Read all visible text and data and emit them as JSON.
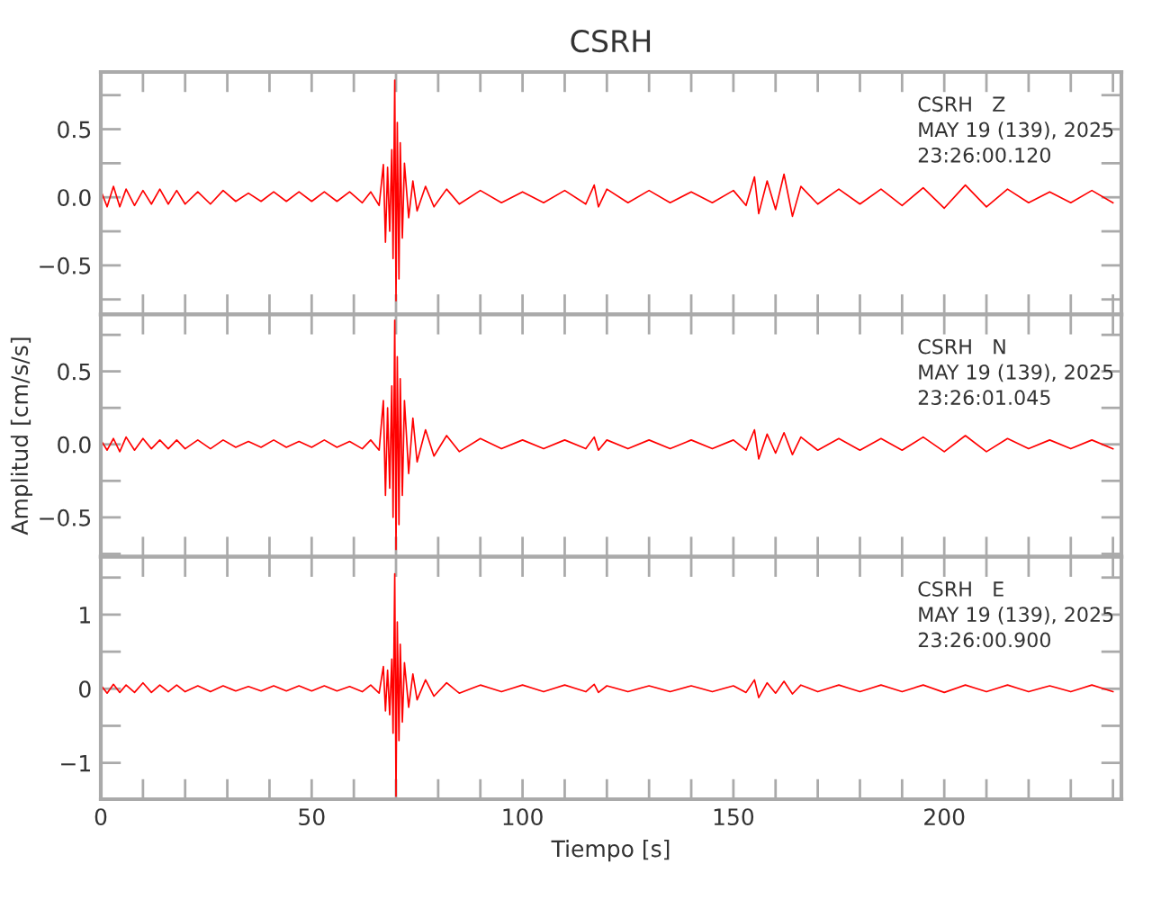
{
  "chart_data": [
    {
      "type": "line",
      "title": "CSRH",
      "tick_labels": "y",
      "annotations": [
        "CSRH   Z",
        "MAY 19 (139), 2025",
        "23:26:00.120"
      ],
      "xlim": [
        0,
        242
      ],
      "xticks": [
        {
          "value": 0,
          "label": null
        },
        {
          "value": 10,
          "label": null
        },
        {
          "value": 20,
          "label": null
        },
        {
          "value": 30,
          "label": null
        },
        {
          "value": 40,
          "label": null
        },
        {
          "value": 50,
          "label": null
        },
        {
          "value": 60,
          "label": null
        },
        {
          "value": 70,
          "label": null
        },
        {
          "value": 80,
          "label": null
        },
        {
          "value": 90,
          "label": null
        },
        {
          "value": 100,
          "label": null
        },
        {
          "value": 110,
          "label": null
        },
        {
          "value": 120,
          "label": null
        },
        {
          "value": 130,
          "label": null
        },
        {
          "value": 140,
          "label": null
        },
        {
          "value": 150,
          "label": null
        },
        {
          "value": 160,
          "label": null
        },
        {
          "value": 170,
          "label": null
        },
        {
          "value": 180,
          "label": null
        },
        {
          "value": 190,
          "label": null
        },
        {
          "value": 200,
          "label": null
        },
        {
          "value": 210,
          "label": null
        },
        {
          "value": 220,
          "label": null
        },
        {
          "value": 230,
          "label": null
        },
        {
          "value": 240,
          "label": null
        }
      ],
      "ylim": [
        -0.86,
        0.92
      ],
      "yticks": [
        {
          "value": -0.75,
          "label": null
        },
        {
          "value": -0.5,
          "label": "−0.5"
        },
        {
          "value": -0.25,
          "label": null
        },
        {
          "value": 0,
          "label": "0.0"
        },
        {
          "value": 0.25,
          "label": null
        },
        {
          "value": 0.5,
          "label": "0.5"
        },
        {
          "value": 0.75,
          "label": null
        }
      ],
      "x": [
        0,
        1.5,
        3,
        4.5,
        6,
        8,
        10,
        12,
        14,
        16,
        18,
        20,
        23,
        26,
        29,
        32,
        35,
        38,
        41,
        44,
        47,
        50,
        53,
        56,
        59,
        62,
        64,
        66,
        67,
        67.5,
        68,
        68.5,
        69,
        69.3,
        69.7,
        70,
        70.3,
        70.7,
        71,
        71.5,
        72,
        73,
        74,
        75,
        77,
        79,
        82,
        85,
        90,
        95,
        100,
        105,
        110,
        115,
        117,
        118,
        120,
        125,
        130,
        135,
        140,
        145,
        150,
        153,
        155,
        156,
        158,
        160,
        162,
        164,
        166,
        170,
        175,
        180,
        185,
        190,
        195,
        200,
        205,
        210,
        215,
        220,
        225,
        230,
        235,
        240
      ],
      "series": [
        {
          "color": "#ff0000",
          "values": [
            0.05,
            -0.07,
            0.08,
            -0.07,
            0.06,
            -0.06,
            0.05,
            -0.05,
            0.06,
            -0.05,
            0.05,
            -0.05,
            0.04,
            -0.05,
            0.05,
            -0.03,
            0.03,
            -0.03,
            0.04,
            -0.03,
            0.04,
            -0.03,
            0.04,
            -0.03,
            0.04,
            -0.04,
            0.04,
            -0.06,
            0.24,
            -0.33,
            0.22,
            -0.25,
            0.35,
            -0.45,
            0.86,
            -0.76,
            0.55,
            -0.6,
            0.4,
            -0.3,
            0.25,
            -0.15,
            0.12,
            -0.1,
            0.08,
            -0.07,
            0.06,
            -0.05,
            0.05,
            -0.04,
            0.04,
            -0.04,
            0.05,
            -0.05,
            0.09,
            -0.07,
            0.06,
            -0.04,
            0.05,
            -0.04,
            0.04,
            -0.04,
            0.05,
            -0.06,
            0.15,
            -0.12,
            0.12,
            -0.09,
            0.17,
            -0.14,
            0.08,
            -0.05,
            0.06,
            -0.05,
            0.06,
            -0.06,
            0.07,
            -0.08,
            0.09,
            -0.07,
            0.06,
            -0.04,
            0.04,
            -0.04,
            0.05,
            -0.04
          ]
        }
      ]
    },
    {
      "type": "line",
      "ylabel": "Amplitud [cm/s/s]",
      "tick_labels": "y",
      "annotations": [
        "CSRH   N",
        "MAY 19 (139), 2025",
        "23:26:01.045"
      ],
      "xlim": [
        0,
        242
      ],
      "xticks": [
        {
          "value": 0,
          "label": null
        },
        {
          "value": 10,
          "label": null
        },
        {
          "value": 20,
          "label": null
        },
        {
          "value": 30,
          "label": null
        },
        {
          "value": 40,
          "label": null
        },
        {
          "value": 50,
          "label": null
        },
        {
          "value": 60,
          "label": null
        },
        {
          "value": 70,
          "label": null
        },
        {
          "value": 80,
          "label": null
        },
        {
          "value": 90,
          "label": null
        },
        {
          "value": 100,
          "label": null
        },
        {
          "value": 110,
          "label": null
        },
        {
          "value": 120,
          "label": null
        },
        {
          "value": 130,
          "label": null
        },
        {
          "value": 140,
          "label": null
        },
        {
          "value": 150,
          "label": null
        },
        {
          "value": 160,
          "label": null
        },
        {
          "value": 170,
          "label": null
        },
        {
          "value": 180,
          "label": null
        },
        {
          "value": 190,
          "label": null
        },
        {
          "value": 200,
          "label": null
        },
        {
          "value": 210,
          "label": null
        },
        {
          "value": 220,
          "label": null
        },
        {
          "value": 230,
          "label": null
        },
        {
          "value": 240,
          "label": null
        }
      ],
      "ylim": [
        -0.77,
        0.89
      ],
      "yticks": [
        {
          "value": -0.75,
          "label": null
        },
        {
          "value": -0.5,
          "label": "−0.5"
        },
        {
          "value": -0.25,
          "label": null
        },
        {
          "value": 0,
          "label": "0.0"
        },
        {
          "value": 0.25,
          "label": null
        },
        {
          "value": 0.5,
          "label": "0.5"
        },
        {
          "value": 0.75,
          "label": null
        }
      ],
      "x": [
        0,
        1.5,
        3,
        4.5,
        6,
        8,
        10,
        12,
        14,
        16,
        18,
        20,
        23,
        26,
        29,
        32,
        35,
        38,
        41,
        44,
        47,
        50,
        53,
        56,
        59,
        62,
        64,
        66,
        67,
        67.5,
        68,
        68.5,
        69,
        69.3,
        69.7,
        70,
        70.3,
        70.7,
        71,
        71.5,
        72,
        73,
        74,
        75,
        77,
        79,
        82,
        85,
        90,
        95,
        100,
        105,
        110,
        115,
        117,
        118,
        120,
        125,
        130,
        135,
        140,
        145,
        150,
        153,
        155,
        156,
        158,
        160,
        162,
        164,
        166,
        170,
        175,
        180,
        185,
        190,
        195,
        200,
        205,
        210,
        215,
        220,
        225,
        230,
        235,
        240
      ],
      "series": [
        {
          "color": "#ff0000",
          "values": [
            0.03,
            -0.04,
            0.04,
            -0.05,
            0.05,
            -0.04,
            0.04,
            -0.03,
            0.03,
            -0.03,
            0.03,
            -0.03,
            0.03,
            -0.03,
            0.03,
            -0.02,
            0.02,
            -0.02,
            0.03,
            -0.02,
            0.02,
            -0.02,
            0.03,
            -0.02,
            0.02,
            -0.03,
            0.03,
            -0.04,
            0.3,
            -0.35,
            0.25,
            -0.3,
            0.4,
            -0.5,
            0.85,
            -0.72,
            0.6,
            -0.55,
            0.45,
            -0.35,
            0.3,
            -0.2,
            0.18,
            -0.12,
            0.1,
            -0.08,
            0.06,
            -0.05,
            0.04,
            -0.03,
            0.03,
            -0.03,
            0.03,
            -0.03,
            0.05,
            -0.04,
            0.03,
            -0.03,
            0.03,
            -0.03,
            0.03,
            -0.03,
            0.03,
            -0.04,
            0.1,
            -0.1,
            0.07,
            -0.06,
            0.08,
            -0.07,
            0.05,
            -0.04,
            0.04,
            -0.04,
            0.04,
            -0.04,
            0.05,
            -0.05,
            0.06,
            -0.05,
            0.04,
            -0.03,
            0.03,
            -0.03,
            0.03,
            -0.03
          ]
        }
      ]
    },
    {
      "type": "line",
      "xlabel": "Tiempo [s]",
      "annotations": [
        "CSRH   E",
        "MAY 19 (139), 2025",
        "23:26:00.900"
      ],
      "xlim": [
        0,
        242
      ],
      "xticks": [
        0,
        {
          "value": 10,
          "label": null
        },
        {
          "value": 20,
          "label": null
        },
        {
          "value": 30,
          "label": null
        },
        {
          "value": 40,
          "label": null
        },
        50,
        {
          "value": 60,
          "label": null
        },
        {
          "value": 70,
          "label": null
        },
        {
          "value": 80,
          "label": null
        },
        {
          "value": 90,
          "label": null
        },
        100,
        {
          "value": 110,
          "label": null
        },
        {
          "value": 120,
          "label": null
        },
        {
          "value": 130,
          "label": null
        },
        {
          "value": 140,
          "label": null
        },
        150,
        {
          "value": 160,
          "label": null
        },
        {
          "value": 170,
          "label": null
        },
        {
          "value": 180,
          "label": null
        },
        {
          "value": 190,
          "label": null
        },
        200,
        {
          "value": 210,
          "label": null
        },
        {
          "value": 220,
          "label": null
        },
        {
          "value": 230,
          "label": null
        },
        {
          "value": 240,
          "label": null
        }
      ],
      "ylim": [
        -1.49,
        1.78
      ],
      "yticks": [
        {
          "value": -1,
          "label": "−1"
        },
        {
          "value": -0.5,
          "label": null
        },
        0,
        {
          "value": 0.5,
          "label": null
        },
        1,
        {
          "value": 1.5,
          "label": null
        }
      ],
      "x": [
        0,
        1.5,
        3,
        4.5,
        6,
        8,
        10,
        12,
        14,
        16,
        18,
        20,
        23,
        26,
        29,
        32,
        35,
        38,
        41,
        44,
        47,
        50,
        53,
        56,
        59,
        62,
        64,
        66,
        67,
        67.5,
        68,
        68.5,
        69,
        69.3,
        69.7,
        70,
        70.3,
        70.7,
        71,
        71.5,
        72,
        73,
        74,
        75,
        77,
        79,
        82,
        85,
        90,
        95,
        100,
        105,
        110,
        115,
        117,
        118,
        120,
        125,
        130,
        135,
        140,
        145,
        150,
        153,
        155,
        156,
        158,
        160,
        162,
        164,
        166,
        170,
        175,
        180,
        185,
        190,
        195,
        200,
        205,
        210,
        215,
        220,
        225,
        230,
        235,
        240
      ],
      "series": [
        {
          "color": "#ff0000",
          "values": [
            0.05,
            -0.06,
            0.06,
            -0.05,
            0.05,
            -0.05,
            0.08,
            -0.05,
            0.05,
            -0.04,
            0.05,
            -0.04,
            0.04,
            -0.04,
            0.04,
            -0.03,
            0.03,
            -0.03,
            0.04,
            -0.03,
            0.04,
            -0.03,
            0.04,
            -0.03,
            0.03,
            -0.04,
            0.05,
            -0.06,
            0.3,
            -0.3,
            0.25,
            -0.35,
            0.4,
            -0.6,
            1.55,
            -1.45,
            0.9,
            -0.7,
            0.6,
            -0.45,
            0.35,
            -0.25,
            0.2,
            -0.15,
            0.12,
            -0.1,
            0.08,
            -0.06,
            0.05,
            -0.04,
            0.05,
            -0.04,
            0.05,
            -0.04,
            0.06,
            -0.05,
            0.04,
            -0.04,
            0.04,
            -0.04,
            0.04,
            -0.04,
            0.04,
            -0.05,
            0.12,
            -0.12,
            0.08,
            -0.06,
            0.1,
            -0.07,
            0.05,
            -0.04,
            0.05,
            -0.04,
            0.05,
            -0.04,
            0.05,
            -0.05,
            0.05,
            -0.04,
            0.05,
            -0.04,
            0.04,
            -0.04,
            0.05,
            -0.04
          ]
        }
      ]
    }
  ]
}
